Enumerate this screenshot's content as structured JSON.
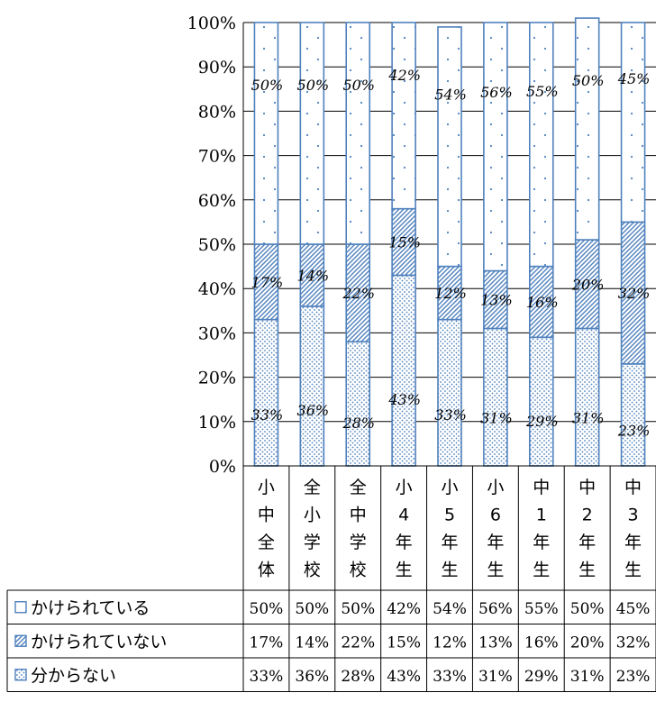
{
  "chart_data": {
    "type": "bar",
    "stacked": true,
    "percent": true,
    "ylim": [
      0,
      100
    ],
    "y_ticks": [
      "0%",
      "10%",
      "20%",
      "30%",
      "40%",
      "50%",
      "60%",
      "70%",
      "80%",
      "90%",
      "100%"
    ],
    "categories": [
      "小中全体",
      "全小学校",
      "全中学校",
      "小4年生",
      "小5年生",
      "小6年生",
      "中1年生",
      "中2年生",
      "中3年生"
    ],
    "series": [
      {
        "name": "分からない",
        "values": [
          33,
          36,
          28,
          43,
          33,
          31,
          29,
          31,
          23
        ],
        "labels": [
          "33%",
          "36%",
          "28%",
          "43%",
          "33%",
          "31%",
          "29%",
          "31%",
          "23%"
        ],
        "pattern": "dots-dense",
        "color": "#4f81bd"
      },
      {
        "name": "かけられていない",
        "values": [
          17,
          14,
          22,
          15,
          12,
          13,
          16,
          20,
          32
        ],
        "labels": [
          "17%",
          "14%",
          "22%",
          "15%",
          "12%",
          "13%",
          "16%",
          "20%",
          "32%"
        ],
        "pattern": "diagonal",
        "color": "#4f81bd"
      },
      {
        "name": "かけられている",
        "values": [
          50,
          50,
          50,
          42,
          54,
          56,
          55,
          50,
          45
        ],
        "labels": [
          "50%",
          "50%",
          "50%",
          "42%",
          "54%",
          "56%",
          "55%",
          "50%",
          "45%"
        ],
        "pattern": "dots-sparse",
        "color": "#4f81bd"
      }
    ],
    "legend_placement": "data-table-below",
    "legend_order": [
      "かけられている",
      "かけられていない",
      "分からない"
    ],
    "grid": true,
    "gridline_color": "#000000",
    "border_color": "#4f81bd"
  }
}
